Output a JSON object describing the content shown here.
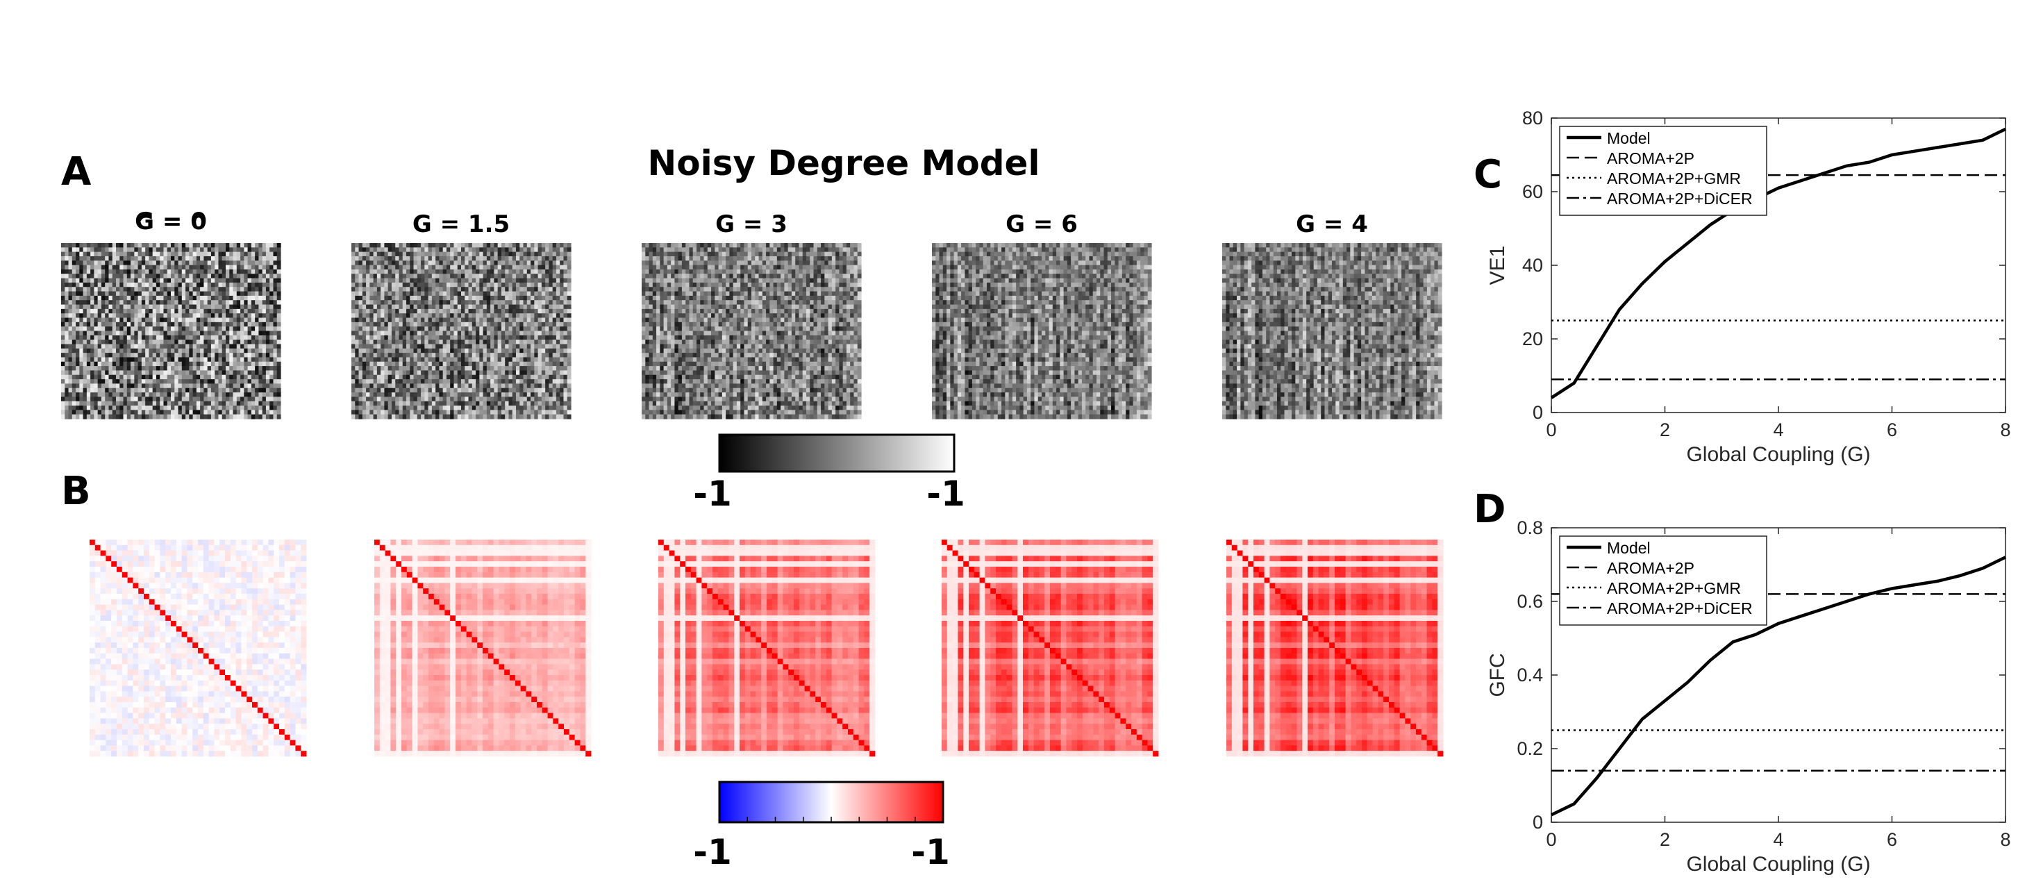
{
  "figure": {
    "title": "Noisy Degree Model",
    "panel_labels": {
      "a": "A",
      "b": "B",
      "c": "C",
      "d": "D"
    }
  },
  "panel_a": {
    "subplots": [
      {
        "label": "G = 0",
        "coupling": 0
      },
      {
        "label": "G = 1.5",
        "coupling": 1.5
      },
      {
        "label": "G = 3",
        "coupling": 3
      },
      {
        "label": "G = 6",
        "coupling": 6
      },
      {
        "label": "G = 4",
        "coupling": 4
      }
    ],
    "colorbar": {
      "min_label": "-1",
      "max_label": "-1",
      "colormap": "gray"
    }
  },
  "panel_b": {
    "colorbar": {
      "min_label": "-1",
      "max_label": "-1",
      "colormap": "blue-white-red"
    }
  },
  "colors": {
    "red": "#ff0000",
    "blue": "#0000ff",
    "line": "#000000"
  },
  "chart_data": [
    {
      "panel": "C",
      "type": "line",
      "title": "",
      "xlabel": "Global Coupling (G)",
      "ylabel": "VE1",
      "xlim": [
        0,
        8
      ],
      "ylim": [
        0,
        80
      ],
      "xticks": [
        0,
        2,
        4,
        6,
        8
      ],
      "yticks": [
        0,
        20,
        40,
        60,
        80
      ],
      "legend_position": "top-left",
      "series": [
        {
          "name": "Model",
          "style": "solid",
          "x": [
            0,
            0.4,
            0.8,
            1.2,
            1.6,
            2.0,
            2.4,
            2.8,
            3.2,
            3.6,
            4.0,
            4.4,
            4.8,
            5.2,
            5.6,
            6.0,
            6.4,
            6.8,
            7.2,
            7.6,
            8.0
          ],
          "y": [
            4,
            8,
            18,
            28,
            35,
            41,
            46,
            51,
            55,
            58,
            61,
            63,
            65,
            67,
            68,
            70,
            71,
            72,
            73,
            74,
            77
          ]
        },
        {
          "name": "AROMA+2P",
          "style": "dashed",
          "x": [
            0,
            8
          ],
          "y": [
            64.5,
            64.5
          ]
        },
        {
          "name": "AROMA+2P+GMR",
          "style": "dotted",
          "x": [
            0,
            8
          ],
          "y": [
            25,
            25
          ]
        },
        {
          "name": "AROMA+2P+DiCER",
          "style": "dashdot",
          "x": [
            0,
            8
          ],
          "y": [
            9,
            9
          ]
        }
      ]
    },
    {
      "panel": "D",
      "type": "line",
      "title": "",
      "xlabel": "Global Coupling (G)",
      "ylabel": "GFC",
      "xlim": [
        0,
        8
      ],
      "ylim": [
        0,
        0.8
      ],
      "xticks": [
        0,
        2,
        4,
        6,
        8
      ],
      "yticks": [
        0,
        0.2,
        0.4,
        0.6,
        0.8
      ],
      "legend_position": "top-left",
      "series": [
        {
          "name": "Model",
          "style": "solid",
          "x": [
            0,
            0.4,
            0.8,
            1.2,
            1.6,
            2.0,
            2.4,
            2.8,
            3.2,
            3.6,
            4.0,
            4.4,
            4.8,
            5.2,
            5.6,
            6.0,
            6.4,
            6.8,
            7.2,
            7.6,
            8.0
          ],
          "y": [
            0.02,
            0.05,
            0.12,
            0.2,
            0.28,
            0.33,
            0.38,
            0.44,
            0.49,
            0.51,
            0.54,
            0.56,
            0.58,
            0.6,
            0.62,
            0.635,
            0.645,
            0.655,
            0.67,
            0.69,
            0.72
          ]
        },
        {
          "name": "AROMA+2P",
          "style": "dashed",
          "x": [
            0,
            8
          ],
          "y": [
            0.62,
            0.62
          ]
        },
        {
          "name": "AROMA+2P+GMR",
          "style": "dotted",
          "x": [
            0,
            8
          ],
          "y": [
            0.25,
            0.25
          ]
        },
        {
          "name": "AROMA+2P+DiCER",
          "style": "dashdot",
          "x": [
            0,
            8
          ],
          "y": [
            0.14,
            0.14
          ]
        }
      ]
    }
  ]
}
